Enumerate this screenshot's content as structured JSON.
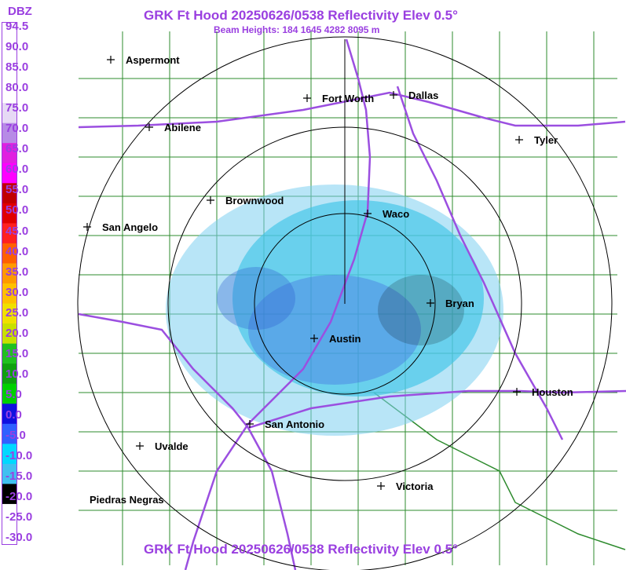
{
  "title": "GRK Ft Hood 20250626/0538 Reflectivity Elev 0.5°",
  "subtitle": "Beam Heights: 184 1645 4282 8095 m",
  "bottom_title": "GRK Ft Hood 20250626/0538 Reflectivity Elev 0.5°",
  "legend": {
    "unit": "DBZ",
    "labels": [
      "94.5",
      "90.0",
      "85.0",
      "80.0",
      "75.0",
      "70.0",
      "65.0",
      "60.0",
      "55.0",
      "50.0",
      "45.0",
      "40.0",
      "35.0",
      "30.0",
      "25.0",
      "20.0",
      "15.0",
      "10.0",
      "5.0",
      "0.0",
      "-5.0",
      "-10.0",
      "-15.0",
      "-20.0",
      "-25.0",
      "-30.0"
    ],
    "colors": [
      "#ffffff",
      "#ffffff",
      "#ffffff",
      "#ffffff",
      "#e6d9f5",
      "#b78ae6",
      "#e020e0",
      "#ff00ff",
      "#c00000",
      "#e00000",
      "#ff2020",
      "#ff6000",
      "#ff9a00",
      "#ffc000",
      "#f0e000",
      "#c8e000",
      "#20c020",
      "#10a010",
      "#00d000",
      "#1010e0",
      "#3060ff",
      "#00d8ff",
      "#40c0f0",
      "#000000",
      "#ffffff",
      "#ffffff"
    ]
  },
  "cities": [
    {
      "name": "Aspermont"
    },
    {
      "name": "Fort Worth"
    },
    {
      "name": "Dallas"
    },
    {
      "name": "Abilene"
    },
    {
      "name": "Tyler"
    },
    {
      "name": "Brownwood"
    },
    {
      "name": "Waco"
    },
    {
      "name": "San Angelo"
    },
    {
      "name": "Bryan"
    },
    {
      "name": "Austin"
    },
    {
      "name": "Houston"
    },
    {
      "name": "San Antonio"
    },
    {
      "name": "Uvalde"
    },
    {
      "name": "Victoria"
    },
    {
      "name": "Piedras Negras"
    }
  ],
  "colors": {
    "label_purple": "#9a3fe0",
    "county_green": "#2e8b2e",
    "highway": "#9b4fe0",
    "range_ring": "#000000"
  }
}
